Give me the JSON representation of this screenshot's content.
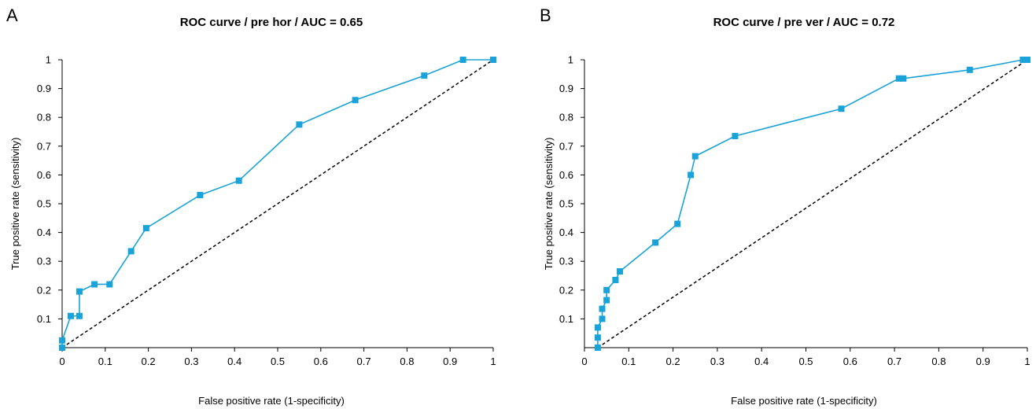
{
  "colors": {
    "curve": "#1aa3d9",
    "marker": "#1aa3d9",
    "diagonal": "#000000",
    "axis": "#000000"
  },
  "chart_data": [
    {
      "type": "line",
      "panel": "A",
      "title": "ROC curve / pre hor / AUC = 0.65",
      "xlabel": "False positive rate (1-specificity)",
      "ylabel": "True positive rate (sensitivity)",
      "xlim": [
        0,
        1
      ],
      "ylim": [
        0,
        1
      ],
      "x_ticks": [
        "0",
        "0.1",
        "0.2",
        "0.3",
        "0.4",
        "0.5",
        "0.6",
        "0.7",
        "0.8",
        "0.9",
        "1"
      ],
      "y_ticks": [
        "0.1",
        "0.2",
        "0.3",
        "0.4",
        "0.5",
        "0.6",
        "0.7",
        "0.8",
        "0.9",
        "1"
      ],
      "grid": false,
      "series": [
        {
          "x": [
            0,
            0,
            0.02,
            0.04,
            0.04,
            0.075,
            0.11,
            0.16,
            0.195,
            0.32,
            0.41,
            0.55,
            0.68,
            0.84,
            0.93,
            1.0
          ],
          "y": [
            0,
            0.025,
            0.11,
            0.11,
            0.195,
            0.22,
            0.22,
            0.335,
            0.415,
            0.53,
            0.58,
            0.775,
            0.86,
            0.945,
            1.0,
            1.0
          ]
        }
      ],
      "reference_line": {
        "x": [
          0,
          1
        ],
        "y": [
          0,
          1
        ]
      }
    },
    {
      "type": "line",
      "panel": "B",
      "title": "ROC curve / pre ver / AUC = 0.72",
      "xlabel": "False positive rate (1-specificity)",
      "ylabel": "True positive rate (sensitivity)",
      "xlim": [
        0,
        1
      ],
      "ylim": [
        0,
        1
      ],
      "x_ticks": [
        "0",
        "0.1",
        "0.2",
        "0.3",
        "0.4",
        "0.5",
        "0.6",
        "0.7",
        "0.8",
        "0.9",
        "1"
      ],
      "y_ticks": [
        "0.1",
        "0.2",
        "0.3",
        "0.4",
        "0.5",
        "0.6",
        "0.7",
        "0.8",
        "0.9",
        "1"
      ],
      "grid": false,
      "series": [
        {
          "x": [
            0.03,
            0.03,
            0.03,
            0.04,
            0.04,
            0.05,
            0.05,
            0.07,
            0.08,
            0.16,
            0.21,
            0.24,
            0.25,
            0.34,
            0.58,
            0.71,
            0.72,
            0.87,
            0.99,
            1.0
          ],
          "y": [
            0,
            0.035,
            0.07,
            0.1,
            0.135,
            0.165,
            0.2,
            0.235,
            0.265,
            0.365,
            0.43,
            0.6,
            0.665,
            0.735,
            0.83,
            0.935,
            0.935,
            0.965,
            1.0,
            1.0
          ]
        }
      ],
      "reference_line": {
        "x": [
          0.03,
          1
        ],
        "y": [
          0,
          1
        ]
      }
    }
  ]
}
